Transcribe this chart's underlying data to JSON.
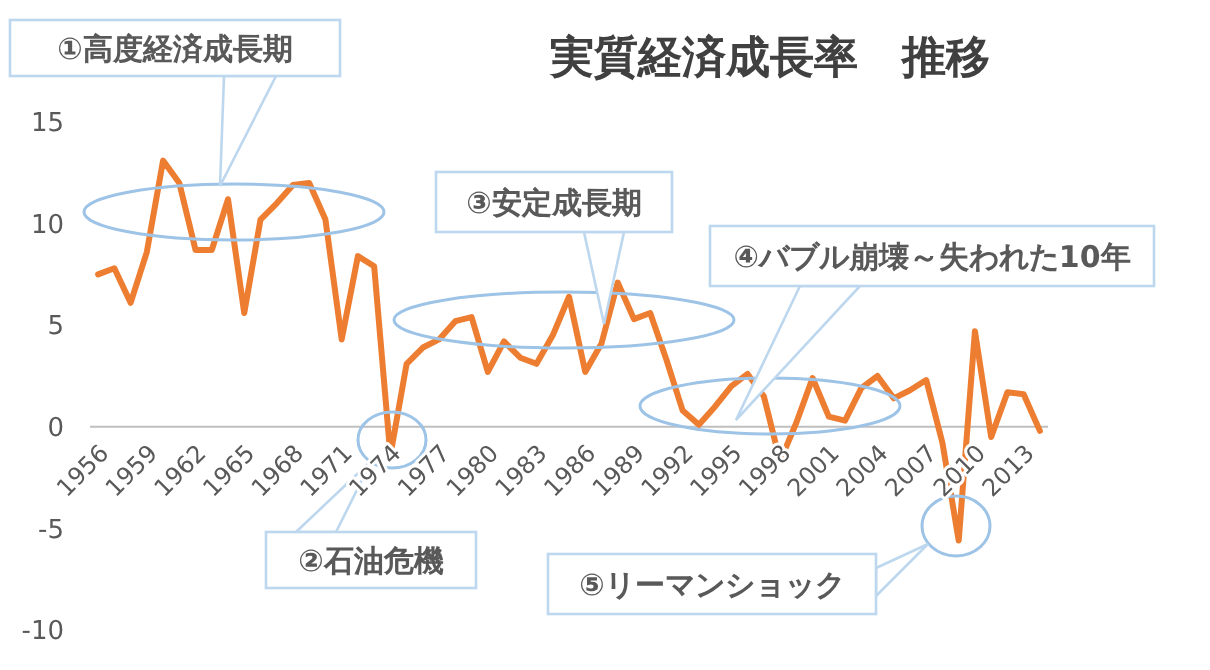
{
  "chart_data": {
    "type": "line",
    "title": "実質経済成長率　推移",
    "x": [
      1956,
      1957,
      1958,
      1959,
      1960,
      1961,
      1962,
      1963,
      1964,
      1965,
      1966,
      1967,
      1968,
      1969,
      1970,
      1971,
      1972,
      1973,
      1974,
      1975,
      1976,
      1977,
      1978,
      1979,
      1980,
      1981,
      1982,
      1983,
      1984,
      1985,
      1986,
      1987,
      1988,
      1989,
      1990,
      1991,
      1992,
      1993,
      1994,
      1995,
      1996,
      1997,
      1998,
      1999,
      2000,
      2001,
      2002,
      2003,
      2004,
      2005,
      2006,
      2007,
      2008,
      2009,
      2010,
      2011,
      2012,
      2013,
      2014
    ],
    "series": [
      {
        "color": "#ed7d31",
        "values": [
          7.5,
          7.8,
          6.1,
          8.6,
          13.1,
          12.0,
          8.7,
          8.7,
          11.2,
          5.6,
          10.2,
          11.0,
          11.9,
          12.0,
          10.2,
          4.3,
          8.4,
          7.9,
          -1.4,
          3.1,
          3.9,
          4.3,
          5.2,
          5.4,
          2.7,
          4.2,
          3.4,
          3.1,
          4.5,
          6.4,
          2.7,
          4.1,
          7.1,
          5.3,
          5.6,
          3.3,
          0.8,
          0.1,
          1.0,
          2.0,
          2.6,
          1.5,
          -1.7,
          0.2,
          2.4,
          0.5,
          0.3,
          1.9,
          2.5,
          1.4,
          1.8,
          2.3,
          -0.8,
          -5.6,
          4.7,
          -0.5,
          1.7,
          1.6,
          -0.2
        ]
      }
    ],
    "xlim": [
      1955.5,
      2014.5
    ],
    "xticks": [
      1956,
      1959,
      1962,
      1965,
      1968,
      1971,
      1974,
      1977,
      1980,
      1983,
      1986,
      1989,
      1992,
      1995,
      1998,
      2001,
      2004,
      2007,
      2010,
      2013
    ],
    "ylim": [
      -10,
      15
    ],
    "yticks": [
      -10,
      -5,
      0,
      5,
      10,
      15
    ],
    "grid": false,
    "marker": "none",
    "line_style": "solid",
    "annotations": [
      "①高度経済成長期",
      "②石油危機",
      "③安定成長期",
      "④バブル崩壊～失われた10年",
      "⑤リーマンショック"
    ]
  }
}
